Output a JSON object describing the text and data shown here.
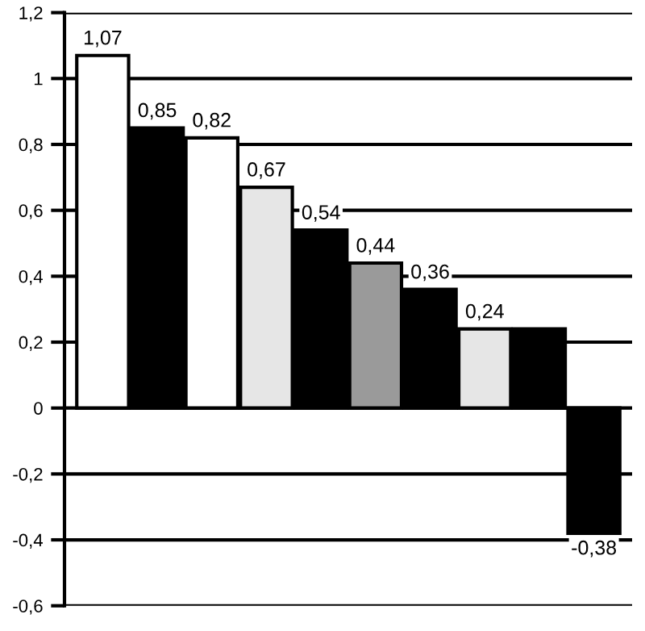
{
  "chart_data": {
    "type": "bar",
    "categories": [
      null,
      null,
      null,
      null,
      null,
      null,
      null,
      null,
      null,
      null
    ],
    "values": [
      1.07,
      0.85,
      0.82,
      0.67,
      0.54,
      0.44,
      0.36,
      0.24,
      0.24,
      -0.38
    ],
    "colors": [
      "#ffffff",
      "#000000",
      "#ffffff",
      "#e6e6e6",
      "#000000",
      "#9a9a9a",
      "#000000",
      "#e6e6e6",
      "#000000",
      "#000000"
    ],
    "value_labels": [
      "1,07",
      "0,85",
      "0,82",
      "0,67",
      "0,54",
      "0,44",
      "0,36",
      "0,24",
      null,
      "-0,38"
    ],
    "ylim": [
      -0.6,
      1.2
    ],
    "yticks": [
      {
        "value": -0.6,
        "label": "-0,6"
      },
      {
        "value": -0.4,
        "label": "-0,4"
      },
      {
        "value": -0.2,
        "label": "-0,2"
      },
      0,
      {
        "value": 0.2,
        "label": "0,2"
      },
      {
        "value": 0.4,
        "label": "0,4"
      },
      {
        "value": 0.6,
        "label": "0,6"
      },
      {
        "value": 0.8,
        "label": "0,8"
      },
      1,
      {
        "value": 1.2,
        "label": "1,2"
      }
    ],
    "grid": "y"
  }
}
